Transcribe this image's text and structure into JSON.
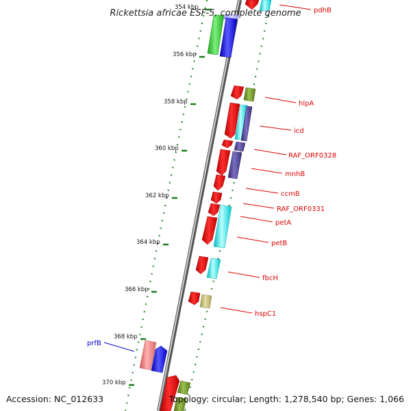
{
  "title": "Rickettsia africae ESF-5, complete genome",
  "footer": {
    "accession": "Accession: NC_012633",
    "summary": "Topology: circular; Length: 1,278,540 bp; Genes: 1,066"
  },
  "colors": {
    "backbone": "#8a8a8a",
    "tick": "#1a7a1a",
    "label_red": "#dd0000",
    "label_blue": "#0000cc",
    "feature_red": "#ff0000",
    "feature_cyan": "#00e5ee",
    "feature_olive": "#6b8e23",
    "feature_slate": "#483d8b",
    "feature_khaki": "#bdb76b",
    "feature_green": "#32cd32",
    "feature_blue": "#0000ff",
    "feature_pink": "#f08080"
  },
  "ticks": [
    {
      "label": "354 kbp"
    },
    {
      "label": "356 kbp"
    },
    {
      "label": "358 kbp"
    },
    {
      "label": "360 kbp"
    },
    {
      "label": "362 kbp"
    },
    {
      "label": "364 kbp"
    },
    {
      "label": "366 kbp"
    },
    {
      "label": "368 kbp"
    },
    {
      "label": "370 kbp"
    }
  ],
  "gene_labels": [
    {
      "text": "pdhB",
      "color": "red"
    },
    {
      "text": "hlpA",
      "color": "red"
    },
    {
      "text": "icd",
      "color": "red"
    },
    {
      "text": "RAF_ORF0328",
      "color": "red"
    },
    {
      "text": "mnhB",
      "color": "red"
    },
    {
      "text": "ccmB",
      "color": "red"
    },
    {
      "text": "RAF_ORF0331",
      "color": "red"
    },
    {
      "text": "petA",
      "color": "red"
    },
    {
      "text": "petB",
      "color": "red"
    },
    {
      "text": "fbcH",
      "color": "red"
    },
    {
      "text": "hspC1",
      "color": "red"
    },
    {
      "text": "prfB",
      "color": "blue"
    }
  ]
}
